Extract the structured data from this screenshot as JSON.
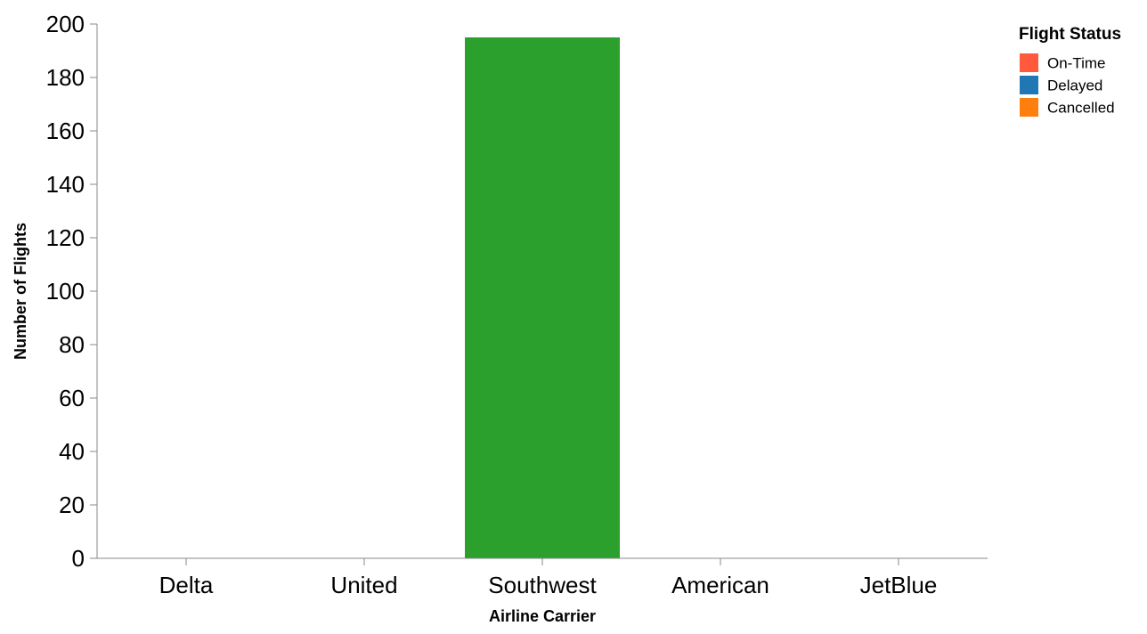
{
  "chart_data": {
    "type": "bar",
    "xlabel": "Airline Carrier",
    "ylabel": "Number of Flights",
    "categories": [
      "Delta",
      "United",
      "Southwest",
      "American",
      "JetBlue"
    ],
    "values": [
      0,
      0,
      195,
      0,
      0
    ],
    "bar_colors": [
      "#2ca02c",
      "#2ca02c",
      "#2ca02c",
      "#2ca02c",
      "#2ca02c"
    ],
    "ylim": [
      0,
      200
    ],
    "yticks": [
      0,
      20,
      40,
      60,
      80,
      100,
      120,
      140,
      160,
      180,
      200
    ],
    "grid": false,
    "legend": {
      "title": "Flight Status",
      "position": "top-right",
      "items": [
        {
          "label": "On-Time",
          "color": "#ff5a3c"
        },
        {
          "label": "Delayed",
          "color": "#1f77b4"
        },
        {
          "label": "Cancelled",
          "color": "#ff7f0e"
        }
      ]
    }
  }
}
